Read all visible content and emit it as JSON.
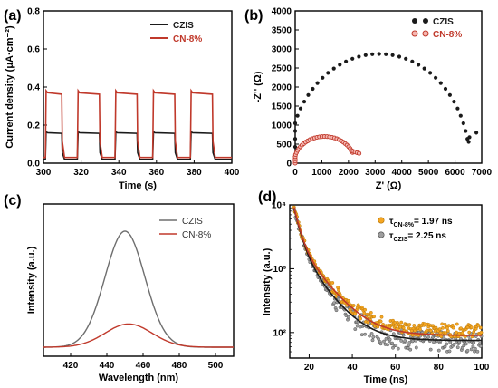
{
  "panels": {
    "a": {
      "label": "(a)"
    },
    "b": {
      "label": "(b)"
    },
    "c": {
      "label": "(c)"
    },
    "d": {
      "label": "(d)"
    }
  },
  "colors": {
    "czis": "#1a1a1a",
    "cn": "#c0392b",
    "czis_gray": "#6e6e6e",
    "cn_orange": "#f5a623",
    "czis_scatter": "#7f7f7f"
  },
  "chart_data": [
    {
      "id": "a",
      "type": "line",
      "xlabel": "Time (s)",
      "ylabel": "Current density (μA·cm⁻²)",
      "xlim": [
        300,
        400
      ],
      "ylim": [
        0.0,
        0.8
      ],
      "xticks": [
        300,
        320,
        340,
        360,
        380,
        400
      ],
      "yticks": [
        0.0,
        0.2,
        0.4,
        0.6,
        0.8
      ],
      "light_on_intervals": [
        [
          301,
          310
        ],
        [
          318,
          330
        ],
        [
          338,
          350
        ],
        [
          358,
          370
        ],
        [
          378,
          390
        ]
      ],
      "series": [
        {
          "name": "CZIS",
          "on_value": 0.16,
          "off_value": 0.02
        },
        {
          "name": "CN-8%",
          "on_value": 0.37,
          "off_value": 0.03
        }
      ]
    },
    {
      "id": "b",
      "type": "scatter",
      "xlabel": "Z' (Ω)",
      "ylabel": "-Z'' (Ω)",
      "xlim": [
        0,
        7000
      ],
      "ylim": [
        0,
        4000
      ],
      "xticks": [
        0,
        1000,
        2000,
        3000,
        4000,
        5000,
        6000,
        7000
      ],
      "yticks": [
        0,
        500,
        1000,
        1500,
        2000,
        2500,
        3000,
        3500,
        4000
      ],
      "series": [
        {
          "name": "CZIS",
          "arc_start": 0,
          "arc_end": 6800,
          "peak": 2870,
          "end_value": 800
        },
        {
          "name": "CN-8%",
          "arc_start": 0,
          "arc_end": 2400,
          "peak": 700,
          "end_value": 260
        }
      ]
    },
    {
      "id": "c",
      "type": "line",
      "xlabel": "Wavelength (nm)",
      "ylabel": "Intensity (a.u.)",
      "xlim": [
        405,
        510
      ],
      "xticks": [
        420,
        440,
        460,
        480,
        500
      ],
      "series": [
        {
          "name": "CZIS",
          "peak_x": 450,
          "peak_height": 1.0,
          "width": 11
        },
        {
          "name": "CN-8%",
          "peak_x": 452,
          "peak_height": 0.2,
          "width": 13
        }
      ]
    },
    {
      "id": "d",
      "type": "scatter",
      "xlabel": "Time (ns)",
      "ylabel": "Intensity (a.u.)",
      "xlim": [
        11,
        100
      ],
      "ylim_log10": [
        1.6,
        4.0
      ],
      "xticks": [
        20,
        40,
        60,
        80,
        100
      ],
      "yticks": [
        "10²",
        "10³",
        "10⁴"
      ],
      "series": [
        {
          "name": "CN-8%",
          "label_main": "τ",
          "label_sub": "CN-8%",
          "label_value": "= 1.97 ns",
          "baseline": 90
        },
        {
          "name": "CZIS",
          "label_main": "τ",
          "label_sub": "CZIS",
          "label_value": "= 2.25 ns",
          "baseline": 75
        }
      ]
    }
  ]
}
